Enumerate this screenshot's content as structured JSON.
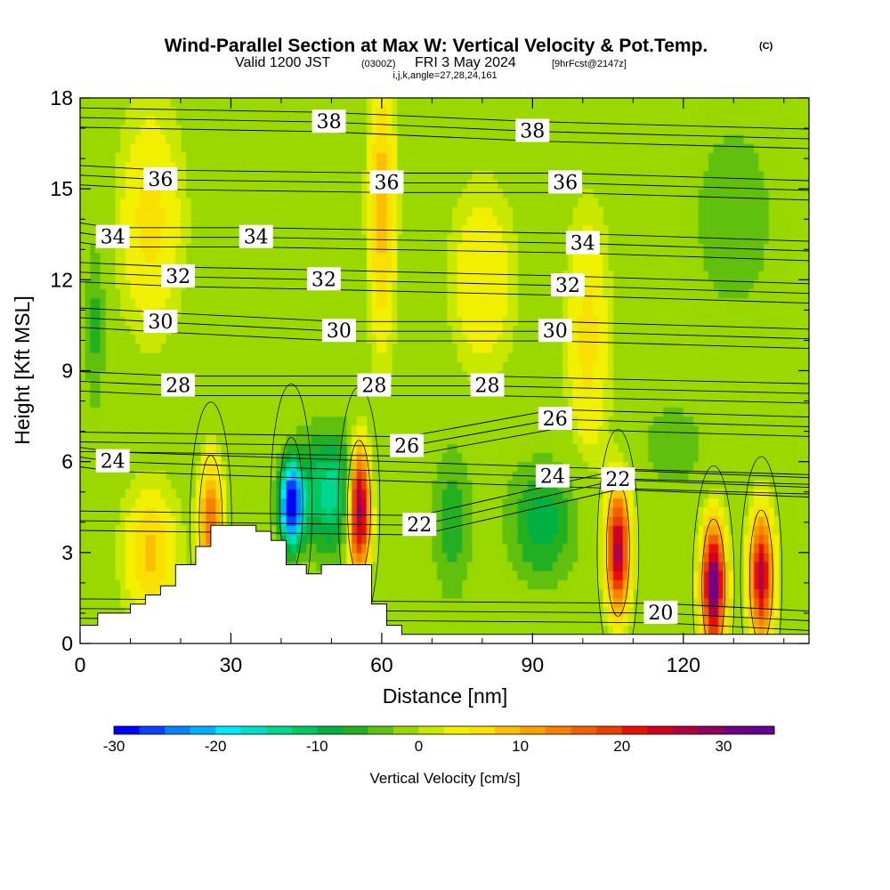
{
  "title": {
    "line1": "Wind-Parallel Section at Max W: Vertical Velocity & Pot.Temp.",
    "line1_unit": "(C)",
    "line2_a": "Valid 1200 JST",
    "line2_b": "(0300Z)",
    "line2_c": "FRI 3 May 2024",
    "line2_d": "[9hrFcst@2147z]",
    "line3": "i,j,k,angle=27,28,24,161"
  },
  "chart_data": {
    "type": "heatmap",
    "xlabel": "Distance [nm]",
    "ylabel": "Height [Kft MSL]",
    "xlim": [
      0,
      145
    ],
    "ylim": [
      0,
      18
    ],
    "x_ticks": [
      0,
      30,
      60,
      90,
      120
    ],
    "y_ticks": [
      0,
      3,
      6,
      9,
      12,
      15,
      18
    ],
    "colorbar": {
      "label": "Vertical Velocity [cm/s]",
      "min": -30,
      "max": 35,
      "step": 2.5,
      "ticks": [
        -30,
        -20,
        -10,
        0,
        10,
        20,
        30
      ],
      "colors": [
        "#0000ff",
        "#0a40ff",
        "#0a80ff",
        "#00b0ff",
        "#00e8ff",
        "#00e0c8",
        "#00d890",
        "#00c860",
        "#00b040",
        "#20b020",
        "#60c010",
        "#98d800",
        "#c8e800",
        "#f0f000",
        "#f8e000",
        "#f8c000",
        "#f8a000",
        "#f88000",
        "#f06000",
        "#e84000",
        "#e81000",
        "#d00020",
        "#b00040",
        "#900060",
        "#700080",
        "#600090"
      ]
    },
    "velocity_features": [
      {
        "kind": "updraft",
        "x": 55.5,
        "height": 4.5,
        "peak_cms": 35
      },
      {
        "kind": "downdraft",
        "x": 42,
        "height": 4.6,
        "peak_cms": -30
      },
      {
        "kind": "updraft",
        "x": 107,
        "height": 3.1,
        "peak_cms": 27
      },
      {
        "kind": "updraft",
        "x": 126,
        "height": 1.9,
        "peak_cms": 33
      },
      {
        "kind": "updraft",
        "x": 135.5,
        "height": 2.2,
        "peak_cms": 26
      },
      {
        "kind": "updraft",
        "x": 26,
        "height": 4.0,
        "peak_cms": 15
      }
    ],
    "theta_labels": [
      {
        "text": "38",
        "x": 49.5,
        "y": 17.2
      },
      {
        "text": "38",
        "x": 90,
        "y": 16.9
      },
      {
        "text": "36",
        "x": 16,
        "y": 15.3
      },
      {
        "text": "36",
        "x": 61,
        "y": 15.2
      },
      {
        "text": "36",
        "x": 96.5,
        "y": 15.2
      },
      {
        "text": "34",
        "x": 6.5,
        "y": 13.4
      },
      {
        "text": "34",
        "x": 35,
        "y": 13.4
      },
      {
        "text": "34",
        "x": 100,
        "y": 13.2
      },
      {
        "text": "32",
        "x": 19.5,
        "y": 12.1
      },
      {
        "text": "32",
        "x": 48.5,
        "y": 12.0
      },
      {
        "text": "32",
        "x": 97,
        "y": 11.8
      },
      {
        "text": "30",
        "x": 16,
        "y": 10.6
      },
      {
        "text": "30",
        "x": 51.5,
        "y": 10.3
      },
      {
        "text": "30",
        "x": 94.5,
        "y": 10.3
      },
      {
        "text": "28",
        "x": 19.5,
        "y": 8.5
      },
      {
        "text": "28",
        "x": 58.5,
        "y": 8.5
      },
      {
        "text": "28",
        "x": 81,
        "y": 8.5
      },
      {
        "text": "26",
        "x": 65,
        "y": 6.5
      },
      {
        "text": "26",
        "x": 94.5,
        "y": 7.4
      },
      {
        "text": "24",
        "x": 6.5,
        "y": 6.0
      },
      {
        "text": "24",
        "x": 94,
        "y": 5.5
      },
      {
        "text": "22",
        "x": 67.5,
        "y": 3.9
      },
      {
        "text": "22",
        "x": 107,
        "y": 5.4
      },
      {
        "text": "20",
        "x": 115.5,
        "y": 1.0
      }
    ],
    "terrain_profile": [
      [
        0,
        0.6
      ],
      [
        3.5,
        0.6
      ],
      [
        3.5,
        1.0
      ],
      [
        10,
        1.0
      ],
      [
        10,
        1.3
      ],
      [
        13,
        1.3
      ],
      [
        13,
        1.6
      ],
      [
        16,
        1.6
      ],
      [
        16,
        1.9
      ],
      [
        19,
        1.9
      ],
      [
        19,
        2.6
      ],
      [
        23,
        2.6
      ],
      [
        23,
        3.2
      ],
      [
        26,
        3.2
      ],
      [
        26,
        3.9
      ],
      [
        35,
        3.9
      ],
      [
        35,
        3.7
      ],
      [
        38,
        3.7
      ],
      [
        38,
        3.4
      ],
      [
        41,
        3.4
      ],
      [
        41,
        2.6
      ],
      [
        45,
        2.6
      ],
      [
        45,
        2.3
      ],
      [
        48,
        2.3
      ],
      [
        48,
        2.6
      ],
      [
        58,
        2.6
      ],
      [
        58,
        1.3
      ],
      [
        61,
        1.3
      ],
      [
        61,
        0.6
      ],
      [
        64,
        0.6
      ],
      [
        64,
        0.3
      ],
      [
        145,
        0.3
      ]
    ]
  }
}
